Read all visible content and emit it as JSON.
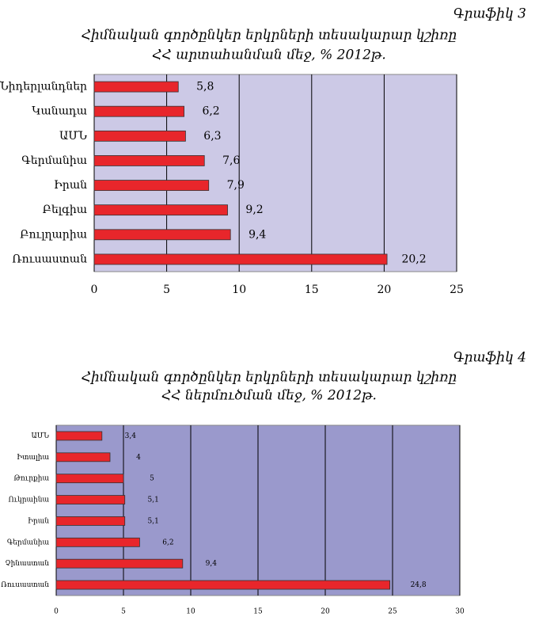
{
  "chart_data": [
    {
      "type": "hbar",
      "label": "Գրաֆիկ 3",
      "title": [
        "Հիմնական գործընկեր երկրների տեսակարար կշիռը",
        "ՀՀ արտահանման մեջ, % 2012թ."
      ],
      "categories": [
        "Նիդերլանդներ",
        "Կանադա",
        "ԱՄՆ",
        "Գերմանիա",
        "Իրան",
        "Բելգիա",
        "Բուլղարիա",
        "Ռուսաստան"
      ],
      "values": [
        5.8,
        6.2,
        6.3,
        7.6,
        7.9,
        9.2,
        9.4,
        20.2
      ],
      "value_labels": [
        "5,8",
        "6,2",
        "6,3",
        "7,6",
        "7,9",
        "9,2",
        "9,4",
        "20,2"
      ],
      "color": "#e8262b",
      "background": "#ccc9e6",
      "xlim": [
        0,
        25
      ],
      "xticks": [
        0,
        5,
        10,
        15,
        20,
        25
      ],
      "grid": true
    },
    {
      "type": "hbar",
      "label": "Գրաֆիկ 4",
      "title": [
        "Հիմնական գործընկեր երկրների տեսակարար կշիռը",
        "ՀՀ ներմուծման մեջ, % 2012թ."
      ],
      "categories": [
        "ԱՄՆ",
        "Իտալիա",
        "Թուրքիա",
        "Ուկրաինա",
        "Իրան",
        "Գերմանիա",
        "Չինաստան",
        "Ռուսաստան"
      ],
      "values": [
        3.4,
        4,
        5,
        5.1,
        5.1,
        6.2,
        9.4,
        24.8
      ],
      "value_labels": [
        "3,4",
        "4",
        "5",
        "5,1",
        "5,1",
        "6,2",
        "9,4",
        "24,8"
      ],
      "color": "#e8262b",
      "background": "#9a99cc",
      "xlim": [
        0,
        30
      ],
      "xticks": [
        0,
        5,
        10,
        15,
        20,
        25,
        30
      ],
      "grid": true
    }
  ]
}
